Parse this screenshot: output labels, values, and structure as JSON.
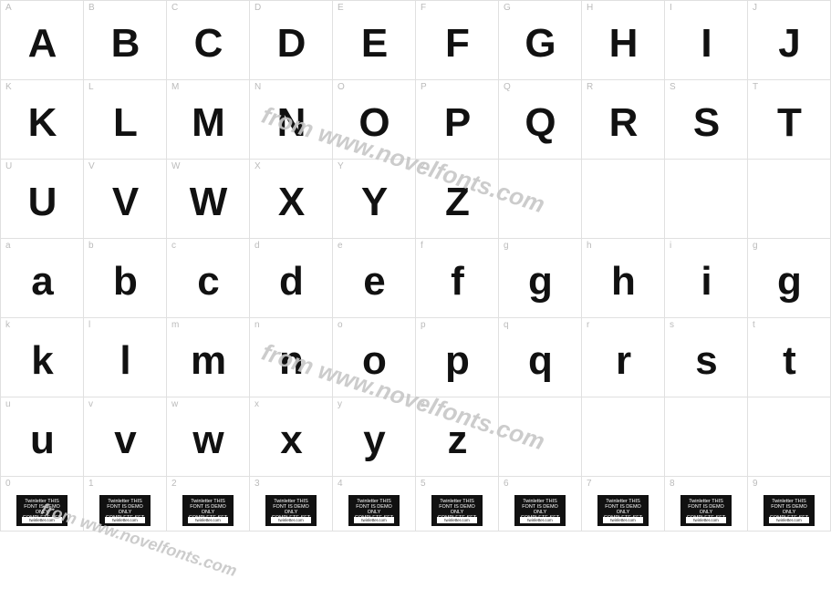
{
  "watermark_text": "from www.novelfonts.com",
  "placeholder": {
    "top": "Twinletter",
    "mid": "THIS FONT IS DEMO ONLY COMPLETE SET",
    "band": "twinletter.com"
  },
  "rows": [
    {
      "type": "upper",
      "labels": [
        "A",
        "B",
        "C",
        "D",
        "E",
        "F",
        "G",
        "H",
        "I",
        "J"
      ],
      "glyphs": [
        "A",
        "B",
        "C",
        "D",
        "E",
        "F",
        "G",
        "H",
        "I",
        "J"
      ]
    },
    {
      "type": "upper",
      "labels": [
        "K",
        "L",
        "M",
        "N",
        "O",
        "P",
        "Q",
        "R",
        "S",
        "T"
      ],
      "glyphs": [
        "K",
        "L",
        "M",
        "N",
        "O",
        "P",
        "Q",
        "R",
        "S",
        "T"
      ]
    },
    {
      "type": "upper",
      "labels": [
        "U",
        "V",
        "W",
        "X",
        "Y",
        "Z",
        "",
        "",
        "",
        ""
      ],
      "glyphs": [
        "U",
        "V",
        "W",
        "X",
        "Y",
        "Z",
        "",
        "",
        "",
        ""
      ]
    },
    {
      "type": "lower",
      "labels": [
        "a",
        "b",
        "c",
        "d",
        "e",
        "f",
        "g",
        "h",
        "i",
        "g"
      ],
      "glyphs": [
        "a",
        "b",
        "c",
        "d",
        "e",
        "f",
        "g",
        "h",
        "i",
        "g"
      ]
    },
    {
      "type": "lower",
      "labels": [
        "k",
        "l",
        "m",
        "n",
        "o",
        "p",
        "q",
        "r",
        "s",
        "t"
      ],
      "glyphs": [
        "k",
        "l",
        "m",
        "n",
        "o",
        "p",
        "q",
        "r",
        "s",
        "t"
      ]
    },
    {
      "type": "lower",
      "labels": [
        "u",
        "v",
        "w",
        "x",
        "y",
        "z",
        "",
        "",
        "",
        ""
      ],
      "glyphs": [
        "u",
        "v",
        "w",
        "x",
        "y",
        "z",
        "",
        "",
        "",
        ""
      ]
    },
    {
      "type": "num",
      "labels": [
        "0",
        "1",
        "2",
        "3",
        "4",
        "5",
        "6",
        "7",
        "8",
        "9"
      ],
      "glyphs": [
        "PH",
        "PH",
        "PH",
        "PH",
        "PH",
        "PH",
        "PH",
        "PH",
        "PH",
        "PH"
      ]
    }
  ],
  "colors": {
    "grid_line": "#e0e0e0",
    "label_text": "#bbbbbb",
    "glyph_text": "#111111",
    "watermark": "#c7c7c7",
    "background": "#ffffff"
  },
  "cell_size": {
    "w": 91,
    "h": 87,
    "num_h": 60
  },
  "glyph_fontsize": 44,
  "label_fontsize": 10
}
